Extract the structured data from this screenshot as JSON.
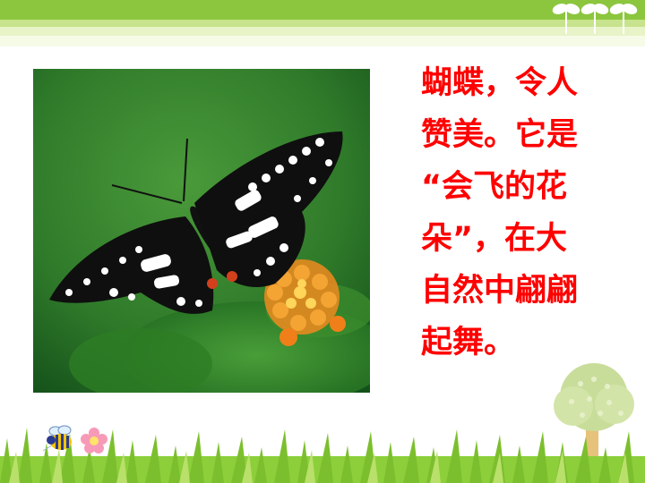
{
  "slide": {
    "text_lines": [
      "蝴蝶，令人",
      "赞美。它是",
      "“会飞的花",
      "朵”，在大",
      "自然中翩翩",
      "起舞。"
    ]
  },
  "colors": {
    "text": "#ff0000",
    "top_band": "#8cc63e",
    "grass": "#7cbf2e",
    "tree_canopy": "#c9dd9b",
    "tree_trunk": "#e7c27a"
  },
  "icons": [
    "sprout-icon",
    "bee-icon",
    "flower-icon",
    "tree-icon",
    "butterfly-photo"
  ]
}
